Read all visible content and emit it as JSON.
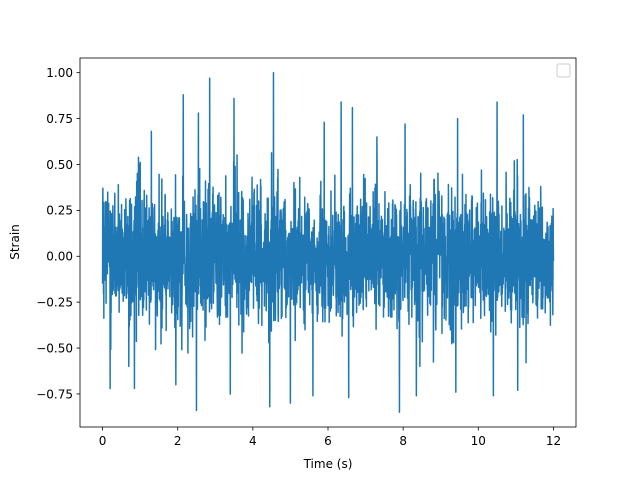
{
  "chart_data": {
    "type": "line",
    "title": "",
    "xlabel": "Time (s)",
    "ylabel": "Strain",
    "xlim": [
      -0.6,
      12.6
    ],
    "ylim": [
      -0.93,
      1.08
    ],
    "xticks": [
      0,
      2,
      4,
      6,
      8,
      10,
      12
    ],
    "xtick_labels": [
      "0",
      "2",
      "4",
      "6",
      "8",
      "10",
      "12"
    ],
    "yticks": [
      -0.75,
      -0.5,
      -0.25,
      0.0,
      0.25,
      0.5,
      0.75,
      1.0
    ],
    "ytick_labels": [
      "−0.75",
      "−0.50",
      "−0.25",
      "0.00",
      "0.25",
      "0.50",
      "0.75",
      "1.00"
    ],
    "grid": false,
    "legend": {
      "placement": "upper-right",
      "entries": []
    },
    "series": [
      {
        "color": "#1f77b4",
        "x_range": [
          0,
          12
        ],
        "typical_range": [
          -0.4,
          0.4
        ],
        "max_point": {
          "x": 4.55,
          "y": 1.0
        },
        "min_point": {
          "x": 7.9,
          "y": -0.85
        },
        "peaks": [
          {
            "x": 0.2,
            "y": 0.64
          },
          {
            "x": 1.3,
            "y": 0.68
          },
          {
            "x": 2.15,
            "y": 0.88
          },
          {
            "x": 2.55,
            "y": 0.78
          },
          {
            "x": 2.85,
            "y": 0.97
          },
          {
            "x": 3.5,
            "y": 0.86
          },
          {
            "x": 4.55,
            "y": 1.0
          },
          {
            "x": 5.9,
            "y": 0.73
          },
          {
            "x": 6.35,
            "y": 0.84
          },
          {
            "x": 6.65,
            "y": 0.81
          },
          {
            "x": 7.3,
            "y": 0.65
          },
          {
            "x": 8.05,
            "y": 0.72
          },
          {
            "x": 9.45,
            "y": 0.75
          },
          {
            "x": 10.5,
            "y": 0.84
          },
          {
            "x": 11.2,
            "y": 0.77
          }
        ],
        "troughs": [
          {
            "x": 0.2,
            "y": -0.72
          },
          {
            "x": 0.85,
            "y": -0.72
          },
          {
            "x": 1.95,
            "y": -0.7
          },
          {
            "x": 2.5,
            "y": -0.84
          },
          {
            "x": 3.4,
            "y": -0.75
          },
          {
            "x": 4.45,
            "y": -0.82
          },
          {
            "x": 5.0,
            "y": -0.8
          },
          {
            "x": 5.6,
            "y": -0.76
          },
          {
            "x": 6.55,
            "y": -0.77
          },
          {
            "x": 7.9,
            "y": -0.85
          },
          {
            "x": 8.35,
            "y": -0.76
          },
          {
            "x": 9.4,
            "y": -0.74
          },
          {
            "x": 10.4,
            "y": -0.76
          },
          {
            "x": 11.05,
            "y": -0.73
          }
        ]
      }
    ]
  }
}
